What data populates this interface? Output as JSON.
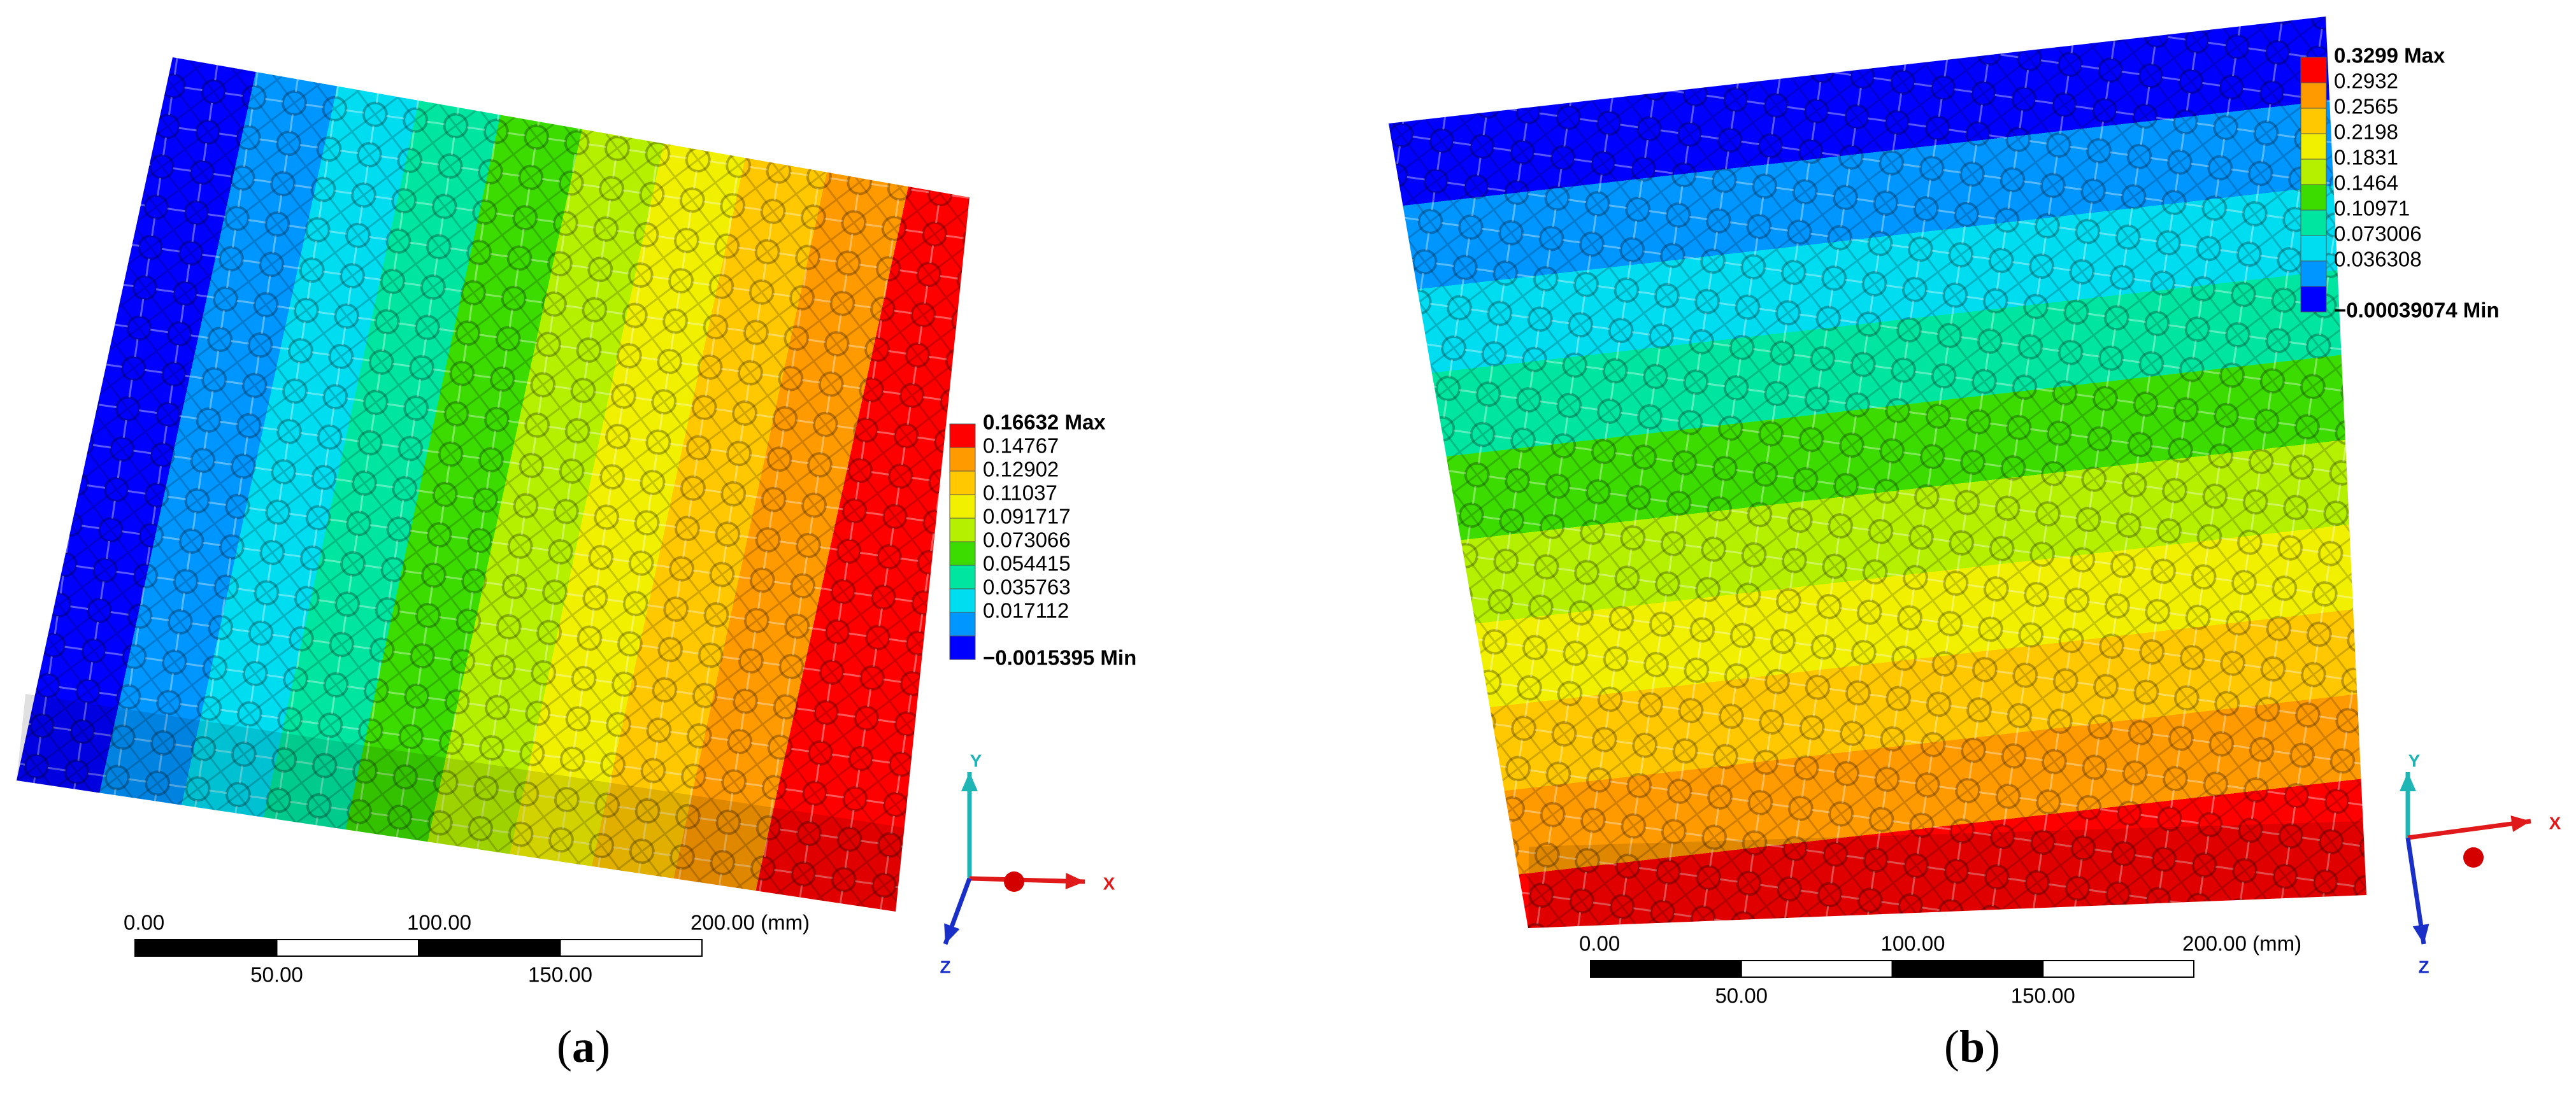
{
  "panels": [
    {
      "legend": [
        {
          "label": "0.16632 Max",
          "color": "#ff0000"
        },
        {
          "label": "0.14767",
          "color": "#ff9a00"
        },
        {
          "label": "0.12902",
          "color": "#ffc800"
        },
        {
          "label": "0.11037",
          "color": "#f0f000"
        },
        {
          "label": "0.091717",
          "color": "#b4f000"
        },
        {
          "label": "0.073066",
          "color": "#3cdc00"
        },
        {
          "label": "0.054415",
          "color": "#00e6a0"
        },
        {
          "label": "0.035763",
          "color": "#00dcf0"
        },
        {
          "label": "0.017112",
          "color": "#0096ff"
        },
        {
          "label": "−0.0015395 Min",
          "color": "#0000ff"
        }
      ],
      "scale_bar": {
        "top": [
          "0.00",
          "100.00",
          "200.00 (mm)"
        ],
        "bottom": [
          "50.00",
          "150.00"
        ]
      },
      "axes": {
        "y": "Y",
        "x": "X",
        "z": "Z"
      },
      "caption": {
        "open": "(",
        "letter": "a",
        "close": ")"
      }
    },
    {
      "legend": [
        {
          "label": "0.3299 Max",
          "color": "#ff0000"
        },
        {
          "label": "0.2932",
          "color": "#ff9a00"
        },
        {
          "label": "0.2565",
          "color": "#ffc800"
        },
        {
          "label": "0.2198",
          "color": "#f0f000"
        },
        {
          "label": "0.1831",
          "color": "#b4f000"
        },
        {
          "label": "0.1464",
          "color": "#3cdc00"
        },
        {
          "label": "0.10971",
          "color": "#00e6a0"
        },
        {
          "label": "0.073006",
          "color": "#00dcf0"
        },
        {
          "label": "0.036308",
          "color": "#0096ff"
        },
        {
          "label": "−0.00039074 Min",
          "color": "#0000ff"
        }
      ],
      "scale_bar": {
        "top": [
          "0.00",
          "100.00",
          "200.00 (mm)"
        ],
        "bottom": [
          "50.00",
          "150.00"
        ]
      },
      "axes": {
        "y": "Y",
        "x": "X",
        "z": "Z"
      },
      "caption": {
        "open": "(",
        "letter": "b",
        "close": ")"
      }
    }
  ]
}
